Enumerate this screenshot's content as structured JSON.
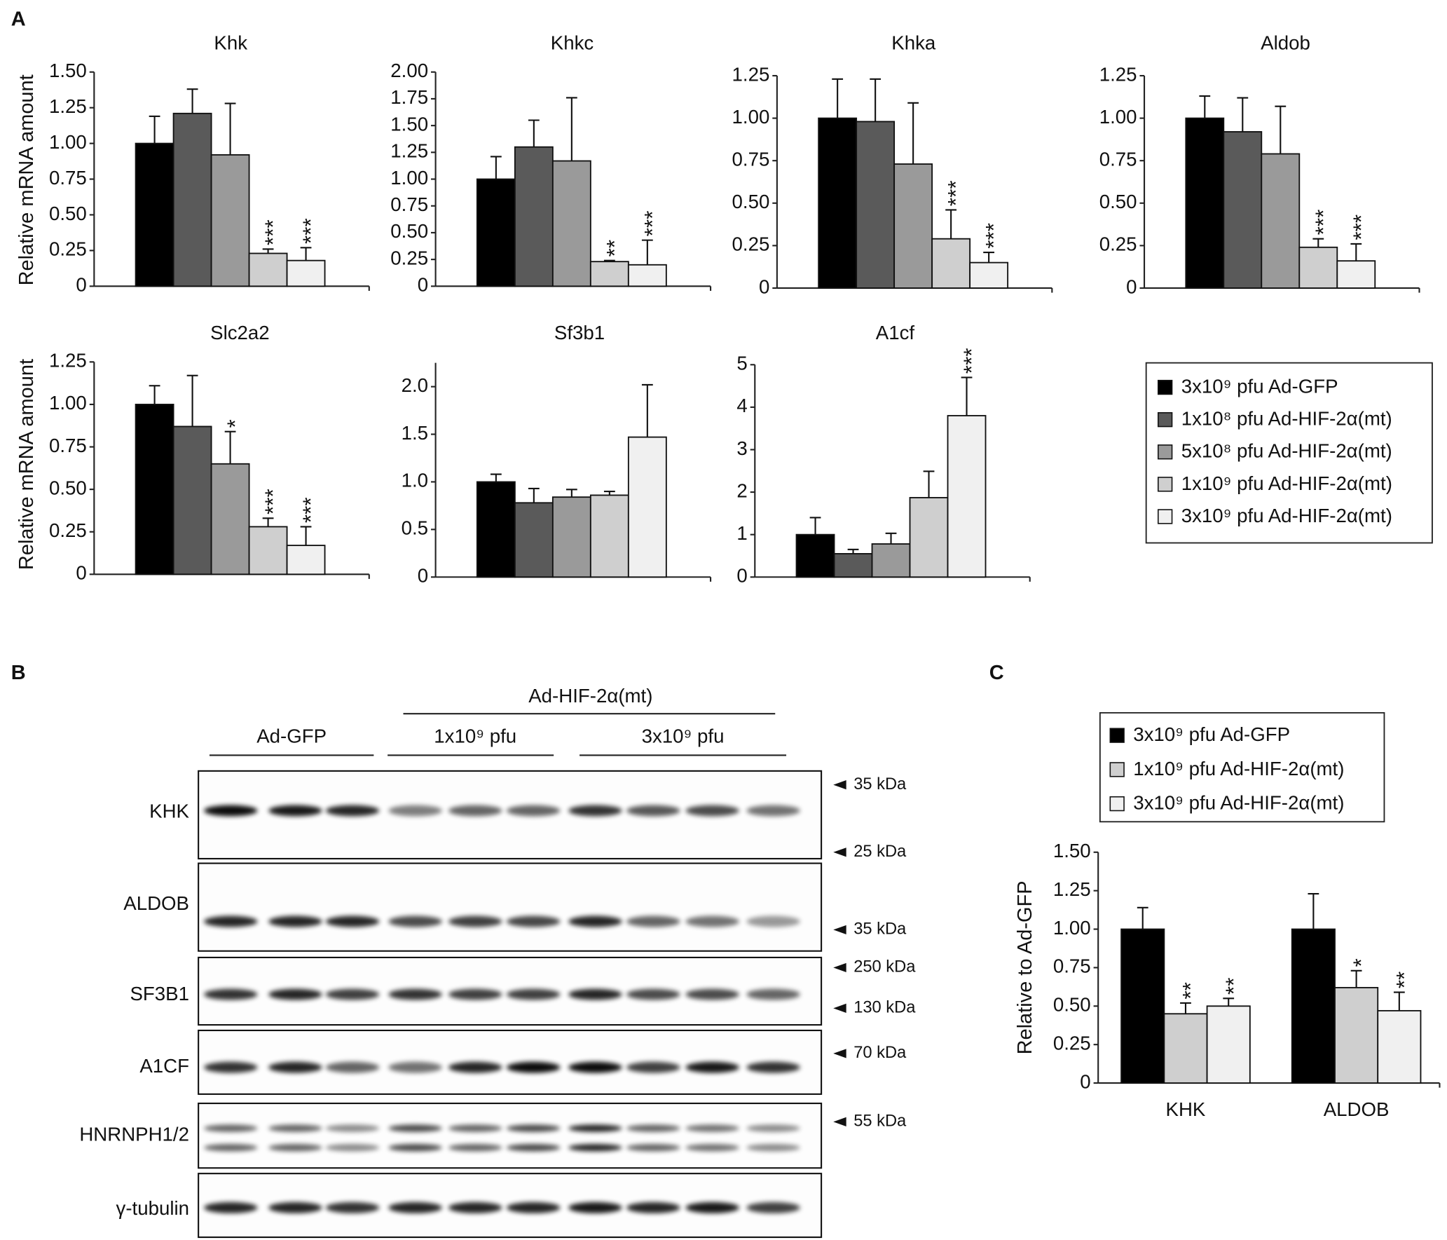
{
  "panel_labels": [
    "A",
    "B",
    "C"
  ],
  "chart_data": [
    {
      "type": "bar-panel",
      "y_label": "Relative mRNA amount",
      "series": [
        {
          "name": "3x10⁹ pfu Ad-GFP",
          "color": "#000000"
        },
        {
          "name": "1x10⁸ pfu Ad-HIF-2α(mt)",
          "color": "#5a5a5a"
        },
        {
          "name": "5x10⁸ pfu Ad-HIF-2α(mt)",
          "color": "#9a9a9a"
        },
        {
          "name": "1x10⁹ pfu Ad-HIF-2α(mt)",
          "color": "#cfcfcf"
        },
        {
          "name": "3x10⁹ pfu Ad-HIF-2α(mt)",
          "color": "#f0f0f0"
        }
      ],
      "charts": [
        {
          "title": "Khk",
          "ylim": [
            0,
            1.5
          ],
          "yticks": [
            0,
            0.25,
            {
              "value": 0.5,
              "label": "0.50"
            },
            0.75,
            {
              "value": 1,
              "label": "1.00"
            },
            1.25,
            {
              "value": 1.5,
              "label": "1.50"
            }
          ],
          "values": [
            1.0,
            1.21,
            0.92,
            0.23,
            0.18
          ],
          "errors": [
            0.19,
            0.17,
            0.36,
            0.03,
            0.09
          ],
          "annotations": [
            null,
            null,
            null,
            "***",
            "***"
          ]
        },
        {
          "title": "Khkc",
          "ylim": [
            0,
            2
          ],
          "yticks": [
            0,
            0.25,
            {
              "value": 0.5,
              "label": "0.50"
            },
            0.75,
            {
              "value": 1,
              "label": "1.00"
            },
            1.25,
            {
              "value": 1.5,
              "label": "1.50"
            },
            1.75,
            {
              "value": 2,
              "label": "2.00"
            }
          ],
          "values": [
            1.0,
            1.3,
            1.17,
            0.23,
            0.2
          ],
          "errors": [
            0.21,
            0.25,
            0.59,
            0.01,
            0.23
          ],
          "annotations": [
            null,
            null,
            null,
            "**",
            "***"
          ]
        },
        {
          "title": "Khka",
          "ylim": [
            0,
            1.25
          ],
          "yticks": [
            0,
            0.25,
            {
              "value": 0.5,
              "label": "0.50"
            },
            0.75,
            {
              "value": 1,
              "label": "1.00"
            },
            1.25
          ],
          "values": [
            1.0,
            0.98,
            0.73,
            0.29,
            0.15
          ],
          "errors": [
            0.23,
            0.25,
            0.36,
            0.17,
            0.06
          ],
          "annotations": [
            null,
            null,
            null,
            "***",
            "***"
          ]
        },
        {
          "title": "Aldob",
          "ylim": [
            0,
            1.25
          ],
          "yticks": [
            0,
            0.25,
            {
              "value": 0.5,
              "label": "0.50"
            },
            0.75,
            {
              "value": 1,
              "label": "1.00"
            },
            1.25
          ],
          "values": [
            1.0,
            0.92,
            0.79,
            0.24,
            0.16
          ],
          "errors": [
            0.13,
            0.2,
            0.28,
            0.05,
            0.1
          ],
          "annotations": [
            null,
            null,
            null,
            "***",
            "***"
          ]
        },
        {
          "title": "Slc2a2",
          "ylim": [
            0,
            1.25
          ],
          "yticks": [
            0,
            0.25,
            {
              "value": 0.5,
              "label": "0.50"
            },
            0.75,
            {
              "value": 1,
              "label": "1.00"
            },
            1.25
          ],
          "values": [
            1.0,
            0.87,
            0.65,
            0.28,
            0.17
          ],
          "errors": [
            0.11,
            0.3,
            0.19,
            0.05,
            0.11
          ],
          "annotations": [
            null,
            null,
            "*",
            "***",
            "***"
          ]
        },
        {
          "title": "Sf3b1",
          "ylim": [
            0,
            2.25
          ],
          "yticks": [
            0,
            0.5,
            {
              "value": 1,
              "label": "1.0"
            },
            1.5,
            {
              "value": 2,
              "label": "2.0"
            }
          ],
          "values": [
            1.0,
            0.78,
            0.84,
            0.86,
            1.47
          ],
          "errors": [
            0.08,
            0.15,
            0.08,
            0.04,
            0.55
          ],
          "annotations": [
            null,
            null,
            null,
            null,
            null
          ]
        },
        {
          "title": "A1cf",
          "ylim": [
            0,
            5
          ],
          "yticks": [
            0,
            1,
            2,
            3,
            4,
            5
          ],
          "values": [
            1.0,
            0.55,
            0.78,
            1.87,
            3.8
          ],
          "errors": [
            0.4,
            0.1,
            0.25,
            0.62,
            0.9
          ],
          "annotations": [
            null,
            null,
            null,
            null,
            "***"
          ]
        }
      ]
    },
    {
      "type": "bar",
      "y_label": "Relative to Ad-GFP",
      "categories": [
        "KHK",
        "ALDOB"
      ],
      "ylim": [
        0,
        1.5
      ],
      "yticks": [
        0,
        0.25,
        {
          "value": 0.5,
          "label": "0.50"
        },
        0.75,
        {
          "value": 1,
          "label": "1.00"
        },
        1.25,
        {
          "value": 1.5,
          "label": "1.50"
        }
      ],
      "series": [
        {
          "name": "3x10⁹ pfu Ad-GFP",
          "color": "#000000",
          "values": [
            1.0,
            1.0
          ],
          "errors": [
            0.14,
            0.23
          ],
          "annotations": [
            null,
            null
          ]
        },
        {
          "name": "1x10⁹ pfu Ad-HIF-2α(mt)",
          "color": "#cfcfcf",
          "values": [
            0.45,
            0.62
          ],
          "errors": [
            0.07,
            0.11
          ],
          "annotations": [
            "**",
            "*"
          ]
        },
        {
          "name": "3x10⁹ pfu Ad-HIF-2α(mt)",
          "color": "#f0f0f0",
          "values": [
            0.5,
            0.47
          ],
          "errors": [
            0.05,
            0.12
          ],
          "annotations": [
            "**",
            "**"
          ]
        }
      ]
    }
  ],
  "blot": {
    "top_group": "Ad-HIF-2α(mt)",
    "groups": [
      "Ad-GFP",
      "1x10⁹ pfu",
      "3x10⁹ pfu"
    ],
    "rows": [
      "KHK",
      "ALDOB",
      "SF3B1",
      "A1CF",
      "HNRNPH1/2",
      "γ-tubulin"
    ],
    "markers": [
      "35 kDa",
      "25 kDa",
      "35 kDa",
      "250 kDa",
      "130 kDa",
      "70 kDa",
      "55 kDa"
    ]
  }
}
